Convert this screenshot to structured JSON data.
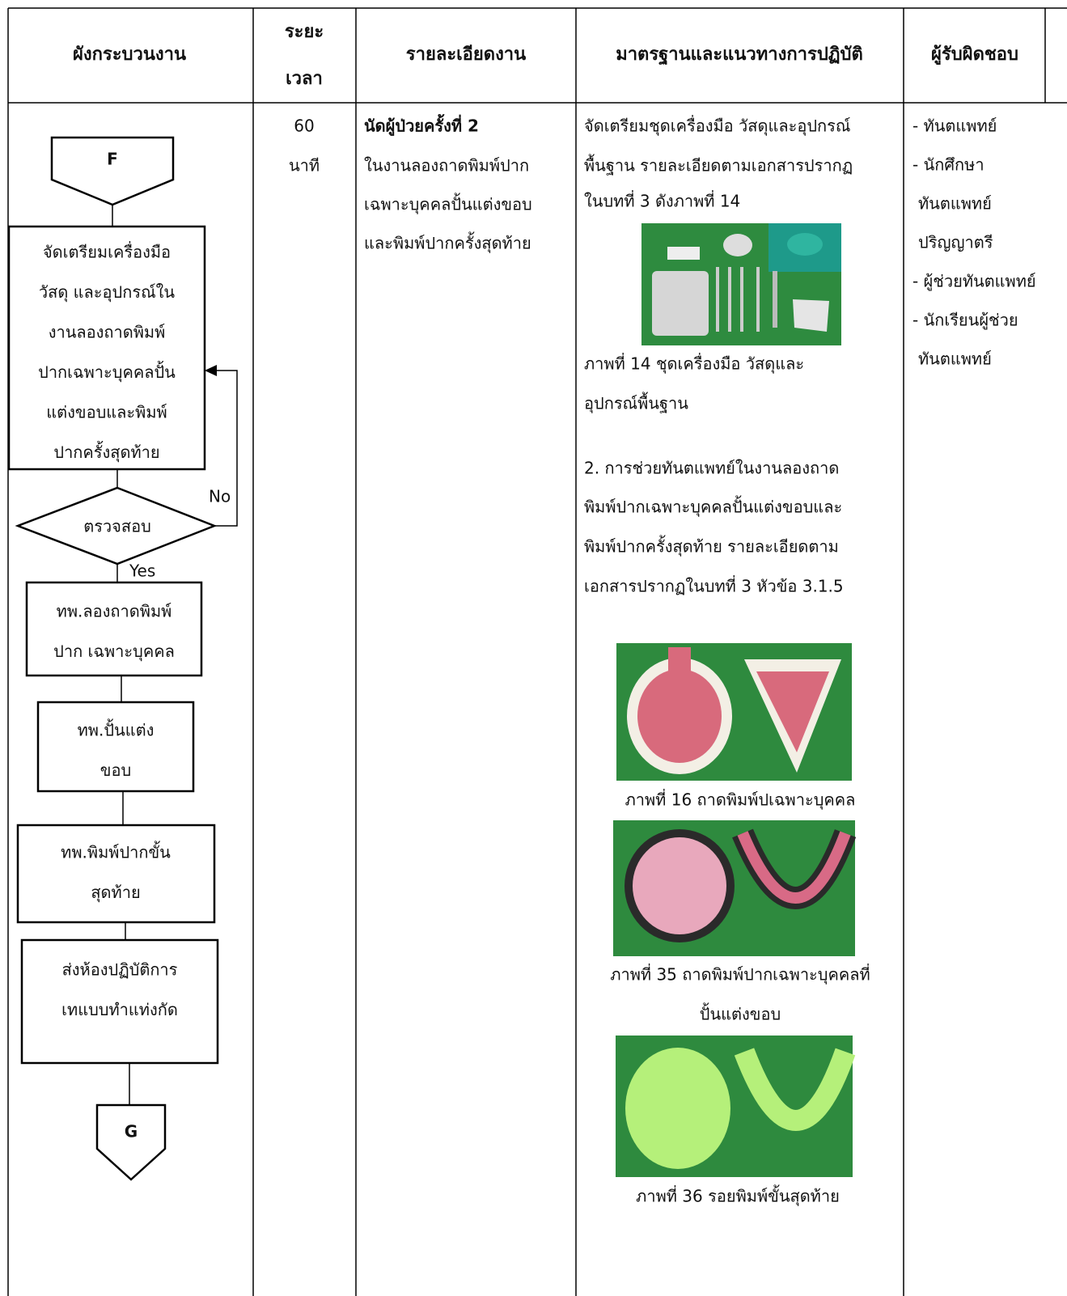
{
  "headers": {
    "flow": "ผังกระบวนงาน",
    "time": [
      "ระยะ",
      "เวลา"
    ],
    "details": "รายละเอียดงาน",
    "standards": "มาตรฐานและแนวทางการปฏิบัติ",
    "responsible": "ผู้รับผิดชอบ"
  },
  "flowchart": {
    "start": "F",
    "steps": [
      [
        "จัดเตรียมเครื่องมือ",
        "วัสดุ และอุปกรณ์ใน",
        "งานลองถาดพิมพ์",
        "ปากเฉพาะบุคคลปั้น",
        "แต่งขอบและพิมพ์",
        "ปากครั้งสุดท้าย"
      ],
      [
        "ทพ.ลองถาดพิมพ์",
        "ปาก เฉพาะบุคคล"
      ],
      [
        "ทพ.ปั้นแต่ง",
        "ขอบ"
      ],
      [
        "ทพ.พิมพ์ปากขั้น",
        "สุดท้าย"
      ],
      [
        "ส่งห้องปฏิบัติการ",
        "เทแบบทำแท่งกัด"
      ]
    ],
    "decision": "ตรวจสอบ",
    "no": "No",
    "yes": "Yes",
    "end": "G"
  },
  "time": [
    "60",
    "นาที"
  ],
  "details": {
    "title": "นัดผู้ป่วยครั้งที่ 2",
    "lines": [
      "ในงานลองถาดพิมพ์ปาก",
      "เฉพาะบุคคลปั้นแต่งขอบ",
      "และพิมพ์ปากครั้งสุดท้าย"
    ]
  },
  "standards": {
    "intro": [
      "จัดเตรียมชุดเครื่องมือ วัสดุและอุปกรณ์",
      "พื้นฐาน รายละเอียดตามเอกสารปรากฏ",
      "ในบทที่ 3 ดังภาพที่ 14"
    ],
    "figure14": [
      "ภาพที่ 14  ชุดเครื่องมือ วัสดุและ",
      "อุปกรณ์พื้นฐาน"
    ],
    "item2": [
      "2. การช่วยทันตแพทย์ในงานลองถาด",
      "พิมพ์ปากเฉพาะบุคคลปั้นแต่งขอบและ",
      "พิมพ์ปากครั้งสุดท้าย รายละเอียดตาม",
      "เอกสารปรากฏในบทที่ 3 หัวข้อ 3.1.5"
    ],
    "figure16": "ภาพที่ 16 ถาดพิมพ์ปเฉพาะบุคคล",
    "figure35": [
      "ภาพที่ 35  ถาดพิมพ์ปากเฉพาะบุคคลที่",
      "ปั้นแต่งขอบ"
    ],
    "figure36": "ภาพที่ 36 รอยพิมพ์ขั้นสุดท้าย"
  },
  "responsible": [
    "- ทันตแพทย์",
    "- นักศึกษา",
    "ทันตแพทย์",
    "ปริญญาตรี",
    "- ผู้ช่วยทันตแพทย์",
    "- นักเรียนผู้ช่วย",
    "ทันตแพทย์"
  ]
}
